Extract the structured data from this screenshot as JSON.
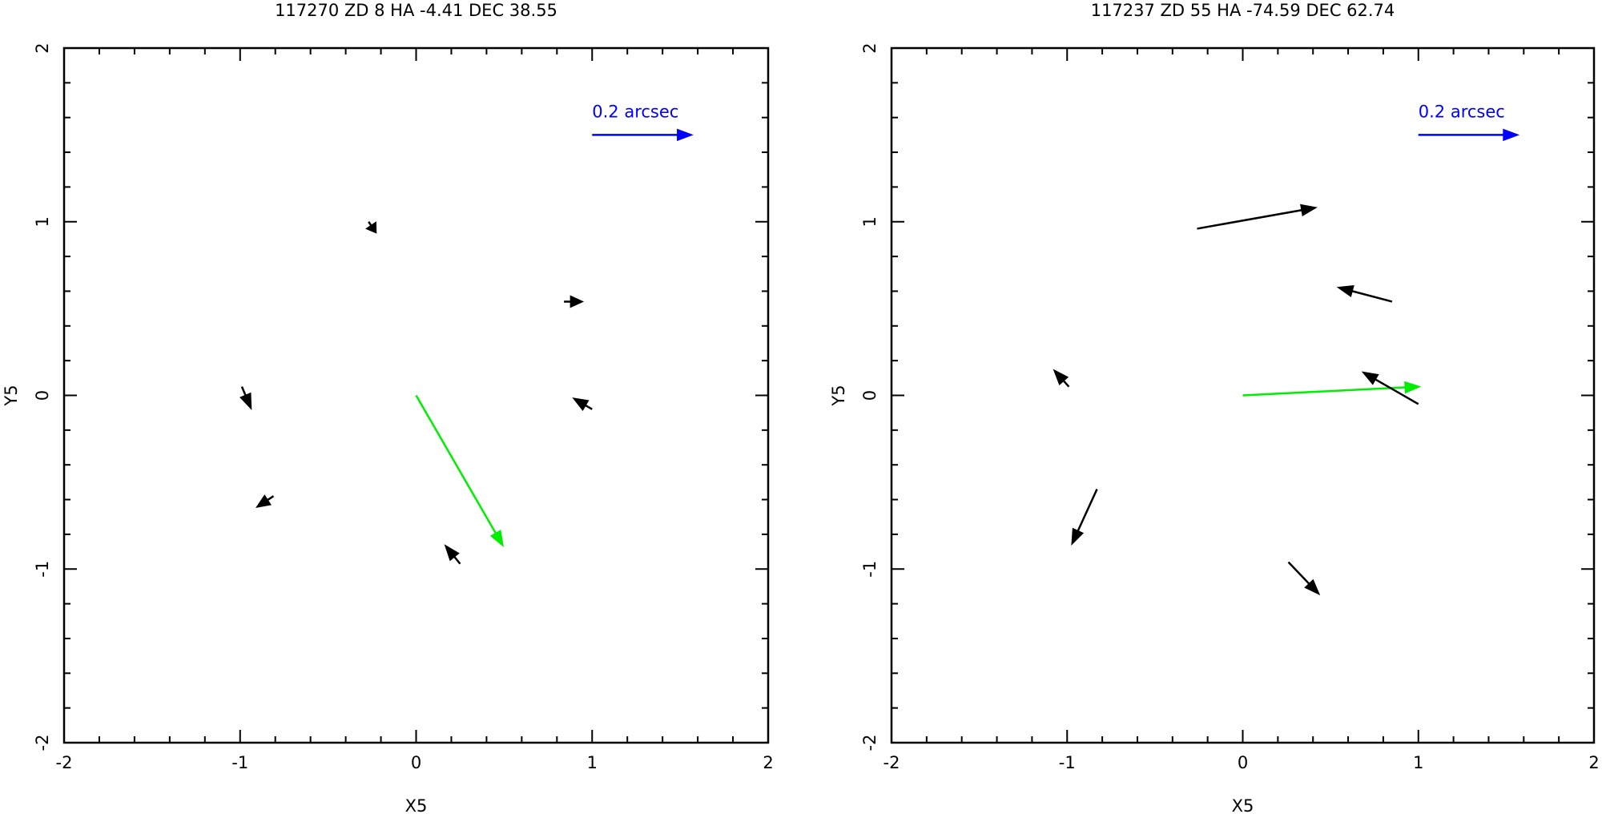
{
  "chart_data": [
    {
      "type": "quiver",
      "title": "117270 ZD 8 HA -4.41  DEC 38.55",
      "xlabel": "X5",
      "ylabel": "Y5",
      "xlim": [
        -2,
        2
      ],
      "ylim": [
        -2,
        2
      ],
      "xticks": [
        -2,
        -1,
        0,
        1,
        2
      ],
      "yticks": [
        -2,
        -1,
        0,
        1,
        2
      ],
      "minor_ticks_per_major": 5,
      "x": [
        0,
        -0.99,
        -0.27,
        0.84,
        1.0,
        -0.81,
        0.25
      ],
      "y": [
        0,
        0.05,
        1.0,
        0.54,
        -0.08,
        -0.58,
        -0.97
      ],
      "u": [
        0.49,
        0.05,
        0.04,
        0.1,
        -0.1,
        -0.09,
        -0.08
      ],
      "v": [
        -0.86,
        -0.12,
        -0.06,
        0,
        0.06,
        -0.06,
        0.1
      ],
      "colors": [
        "#00ee00",
        "#000000",
        "#000000",
        "#000000",
        "#000000",
        "#000000",
        "#000000"
      ],
      "key": {
        "label": "0.2 arcsec",
        "x": 1.0,
        "y": 1.5,
        "u": 0.56,
        "color": "#0000ff"
      }
    },
    {
      "type": "quiver",
      "title": "117237 ZD 55 HA -74.59  DEC 62.74",
      "xlabel": "X5",
      "ylabel": "Y5",
      "xlim": [
        -2,
        2
      ],
      "ylim": [
        -2,
        2
      ],
      "xticks": [
        -2,
        -1,
        0,
        1,
        2
      ],
      "yticks": [
        -2,
        -1,
        0,
        1,
        2
      ],
      "minor_ticks_per_major": 5,
      "x": [
        0,
        -0.26,
        0.85,
        1.0,
        -0.99,
        -0.83,
        0.26
      ],
      "y": [
        0,
        0.96,
        0.54,
        -0.05,
        0.05,
        -0.54,
        -0.96
      ],
      "u": [
        1.0,
        0.67,
        -0.3,
        -0.31,
        -0.08,
        -0.14,
        0.17
      ],
      "v": [
        0.05,
        0.12,
        0.08,
        0.18,
        0.09,
        -0.31,
        -0.18
      ],
      "colors": [
        "#00ee00",
        "#000000",
        "#000000",
        "#000000",
        "#000000",
        "#000000",
        "#000000"
      ],
      "key": {
        "label": "0.2 arcsec",
        "x": 1.0,
        "y": 1.5,
        "u": 0.56,
        "color": "#0000ff"
      }
    }
  ]
}
